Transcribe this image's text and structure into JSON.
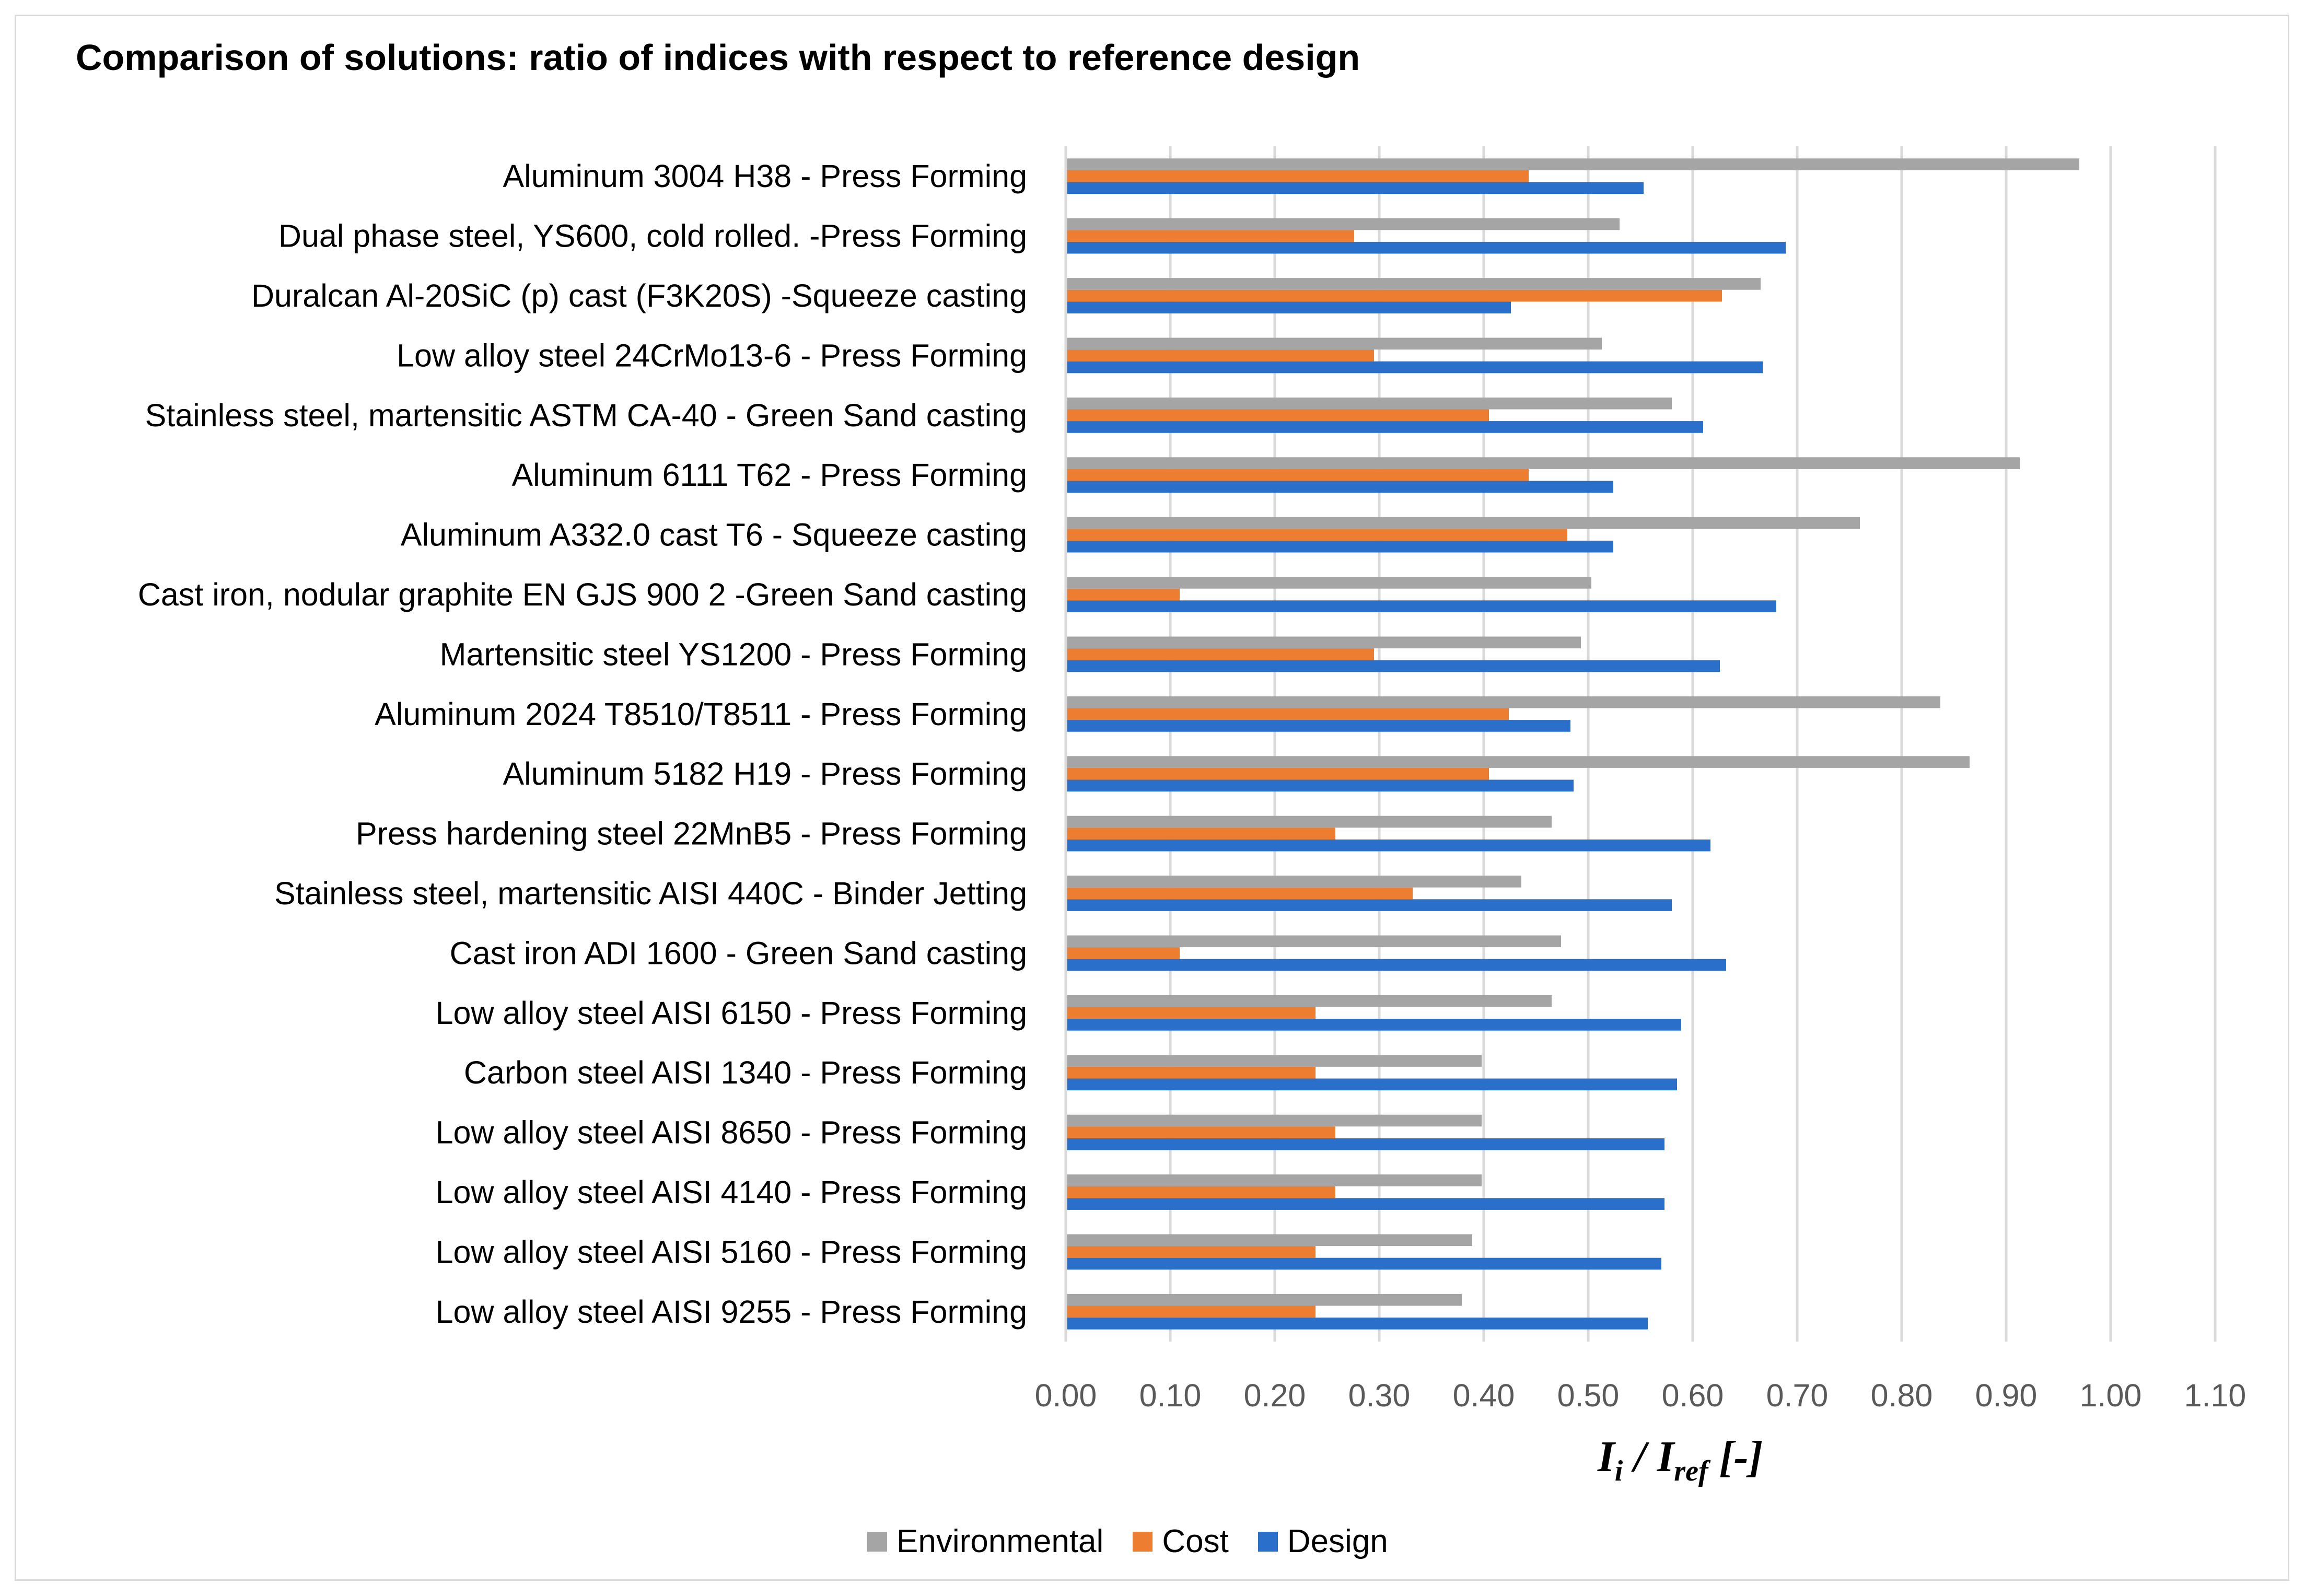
{
  "chart_data": {
    "type": "bar",
    "orientation": "horizontal",
    "title": "Comparison of solutions: ratio of indices with respect to reference design",
    "xlabel_main": "I",
    "xlabel_sub1": "i",
    "xlabel_sep": " / I",
    "xlabel_sub2": "ref",
    "xlabel_tail": " [-]",
    "xlim": [
      0,
      1.1
    ],
    "xticks": [
      "0.00",
      "0.10",
      "0.20",
      "0.30",
      "0.40",
      "0.50",
      "0.60",
      "0.70",
      "0.80",
      "0.90",
      "1.00",
      "1.10"
    ],
    "grid": "vertical",
    "legend_position": "bottom",
    "categories": [
      "Aluminum 3004 H38 - Press Forming",
      "Dual phase steel, YS600, cold rolled. -Press Forming",
      "Duralcan Al-20SiC (p) cast (F3K20S) -Squeeze casting",
      "Low alloy steel 24CrMo13-6 - Press Forming",
      "Stainless steel, martensitic ASTM CA-40 - Green Sand casting",
      "Aluminum 6111 T62 - Press Forming",
      "Aluminum A332.0 cast T6 - Squeeze casting",
      "Cast iron, nodular graphite EN GJS 900 2 -Green Sand casting",
      "Martensitic steel YS1200 - Press Forming",
      "Aluminum 2024 T8510/T8511 - Press Forming",
      "Aluminum 5182 H19 - Press Forming",
      "Press hardening steel 22MnB5 - Press Forming",
      "Stainless steel, martensitic AISI 440C - Binder Jetting",
      "Cast iron ADI 1600 - Green Sand casting",
      "Low alloy steel AISI 6150 - Press Forming",
      "Carbon steel AISI 1340 - Press Forming",
      "Low alloy steel AISI 8650 - Press Forming",
      "Low alloy steel AISI 4140 - Press Forming",
      "Low alloy steel AISI 5160 - Press Forming",
      "Low alloy steel AISI 9255 - Press Forming"
    ],
    "series": [
      {
        "name": "Environmental",
        "color": "#a5a5a5",
        "values": [
          0.97,
          0.53,
          0.665,
          0.513,
          0.58,
          0.913,
          0.76,
          0.503,
          0.493,
          0.837,
          0.865,
          0.465,
          0.436,
          0.474,
          0.465,
          0.398,
          0.398,
          0.398,
          0.389,
          0.379
        ]
      },
      {
        "name": "Cost",
        "color": "#ed7d31",
        "values": [
          0.443,
          0.276,
          0.628,
          0.295,
          0.405,
          0.443,
          0.48,
          0.109,
          0.295,
          0.424,
          0.405,
          0.258,
          0.332,
          0.109,
          0.239,
          0.239,
          0.258,
          0.258,
          0.239,
          0.239
        ]
      },
      {
        "name": "Design",
        "color": "#2a6fc9",
        "values": [
          0.553,
          0.689,
          0.426,
          0.667,
          0.61,
          0.524,
          0.524,
          0.68,
          0.626,
          0.483,
          0.486,
          0.617,
          0.58,
          0.632,
          0.589,
          0.585,
          0.573,
          0.573,
          0.57,
          0.557
        ]
      }
    ]
  }
}
